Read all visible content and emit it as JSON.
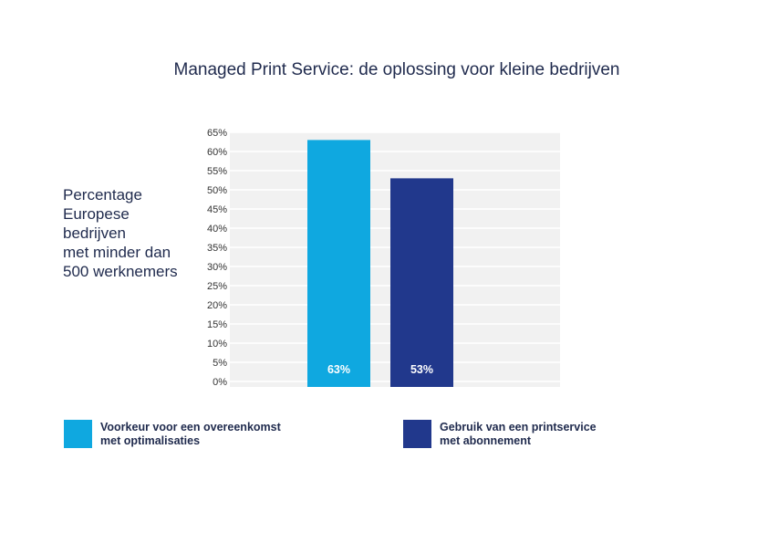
{
  "chart_data": {
    "type": "bar",
    "title": "Managed Print Service: de oplossing voor kleine bedrijven",
    "ylabel_lines": [
      "Percentage",
      "Europese",
      "bedrijven",
      "met minder dan",
      "500 werknemers"
    ],
    "xlabel": "",
    "ylim": [
      0,
      65
    ],
    "yticks": [
      "0%",
      "5%",
      "10%",
      "15%",
      "20%",
      "25%",
      "30%",
      "35%",
      "40%",
      "45%",
      "50%",
      "55%",
      "60%",
      "65%"
    ],
    "grid": true,
    "legend_position": "bottom",
    "series": [
      {
        "name_lines": [
          "Voorkeur voor een overeenkomst",
          "met optimalisaties"
        ],
        "value": 63,
        "label": "63%",
        "color": "#0fa8e0"
      },
      {
        "name_lines": [
          "Gebruik van een printservice",
          "met abonnement"
        ],
        "value": 53,
        "label": "53%",
        "color": "#21388c"
      }
    ]
  }
}
